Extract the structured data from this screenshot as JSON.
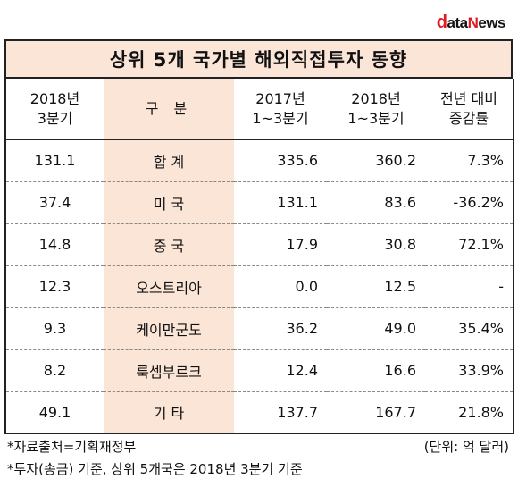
{
  "logo": {
    "d": "d",
    "ata": "ata",
    "n": "N",
    "ews": "ews"
  },
  "title": "상위 5개 국가별 해외직접투자 동향",
  "header": {
    "col1_line1": "2018년",
    "col1_line2": "3분기",
    "col2": "구 분",
    "col3_line1": "2017년",
    "col3_line2": "1~3분기",
    "col4_line1": "2018년",
    "col4_line2": "1~3분기",
    "col5_line1": "전년 대비",
    "col5_line2": "증감률"
  },
  "rows": [
    {
      "q3_2018": "131.1",
      "category": "합 계",
      "y2017": "335.6",
      "y2018": "360.2",
      "change": "7.3%"
    },
    {
      "q3_2018": "37.4",
      "category": "미 국",
      "y2017": "131.1",
      "y2018": "83.6",
      "change": "-36.2%"
    },
    {
      "q3_2018": "14.8",
      "category": "중 국",
      "y2017": "17.9",
      "y2018": "30.8",
      "change": "72.1%"
    },
    {
      "q3_2018": "12.3",
      "category": "오스트리아",
      "y2017": "0.0",
      "y2018": "12.5",
      "change": "-"
    },
    {
      "q3_2018": "9.3",
      "category": "케이만군도",
      "y2017": "36.2",
      "y2018": "49.0",
      "change": "35.4%"
    },
    {
      "q3_2018": "8.2",
      "category": "룩셈부르크",
      "y2017": "12.4",
      "y2018": "16.6",
      "change": "33.9%"
    },
    {
      "q3_2018": "49.1",
      "category": "기 타",
      "y2017": "137.7",
      "y2018": "167.7",
      "change": "21.8%"
    }
  ],
  "footer": {
    "source": "*자료출처=기획재정부",
    "unit": "(단위: 억 달러)",
    "note": "*투자(송금) 기준, 상위 5개국은 2018년 3분기 기준"
  }
}
